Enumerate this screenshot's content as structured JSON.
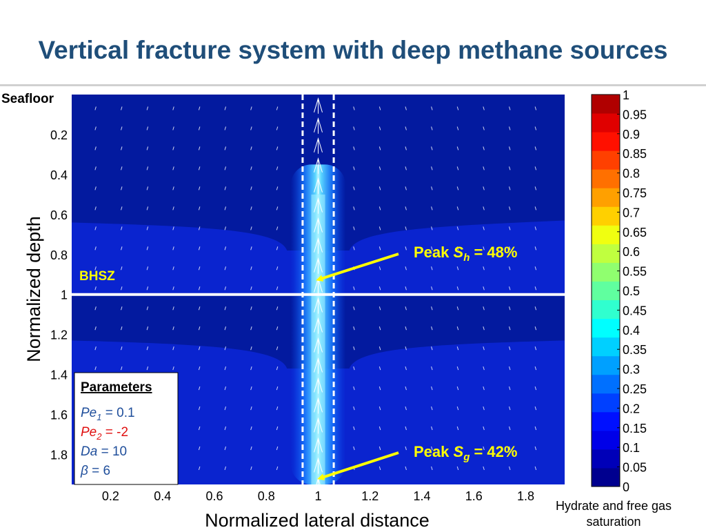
{
  "page": {
    "title": "Vertical fracture system with deep methane sources",
    "seafloor_label": "Seafloor",
    "bhsz_label": "BHSZ"
  },
  "colors": {
    "title": "#1f4e79",
    "background_field": "#0a24cf",
    "bhsz_line": "#ffffff",
    "annotation_text": "#ffff00"
  },
  "annotations": {
    "peak_sh": {
      "prefix": "Peak ",
      "symbol": "S",
      "sub": "h",
      "suffix": " = 48%",
      "target": [
        1.0,
        0.95
      ]
    },
    "peak_sg": {
      "prefix": "Peak ",
      "symbol": "S",
      "sub": "g",
      "suffix": " = 42%",
      "target": [
        1.0,
        1.95
      ]
    }
  },
  "parameters": {
    "heading": "Parameters",
    "rows": [
      {
        "symbol": "Pe",
        "sub": "1",
        "rest": " = 0.1",
        "color": "#1f4e9b"
      },
      {
        "symbol": "Pe",
        "sub": "2",
        "rest": " = -2",
        "color": "#e01010"
      },
      {
        "symbol": "Da",
        "sub": "",
        "rest": " = 10",
        "color": "#1f4e9b"
      },
      {
        "symbol": "β",
        "sub": "",
        "rest": " = 6",
        "color": "#1f4e9b"
      }
    ]
  },
  "chart_data": {
    "type": "heatmap",
    "title": "",
    "xlabel": "Normalized lateral distance",
    "ylabel": "Normalized depth",
    "xlim": [
      0.05,
      1.95
    ],
    "ylim": [
      0,
      1.95
    ],
    "y_inverted": true,
    "x_ticks": [
      0.2,
      0.4,
      0.6,
      0.8,
      1,
      1.2,
      1.4,
      1.6,
      1.8
    ],
    "x_tick_labels": [
      "0.2",
      "0.4",
      "0.6",
      "0.8",
      "1",
      "1.2",
      "1.4",
      "1.6",
      "1.8"
    ],
    "y_ticks": [
      0.2,
      0.4,
      0.6,
      0.8,
      1,
      1.2,
      1.4,
      1.6,
      1.8
    ],
    "y_tick_labels": [
      "0.2",
      "0.4",
      "0.6",
      "0.8",
      "1",
      "1.2",
      "1.4",
      "1.6",
      "1.8"
    ],
    "bhsz_depth": 1.0,
    "fracture_bounds": [
      0.94,
      1.06
    ],
    "peak_hydrate_saturation": 0.48,
    "peak_gas_saturation": 0.42,
    "colorbar": {
      "label": "Hydrate and free gas saturation",
      "label_lines": [
        "Hydrate and free gas",
        "saturation"
      ],
      "min": 0,
      "max": 1,
      "tick_labels": [
        "1",
        "0.95",
        "0.9",
        "0.85",
        "0.8",
        "0.75",
        "0.7",
        "0.65",
        "0.6",
        "0.55",
        "0.5",
        "0.45",
        "0.4",
        "0.35",
        "0.3",
        "0.25",
        "0.2",
        "0.15",
        "0.1",
        "0.05",
        "0"
      ],
      "colors": [
        "#00008f",
        "#0000b8",
        "#0000e8",
        "#0010ff",
        "#0040ff",
        "#0070ff",
        "#00a0ff",
        "#00d0ff",
        "#00ffff",
        "#30ffcf",
        "#60ff9f",
        "#90ff6f",
        "#c0ff3f",
        "#f0ff10",
        "#ffd000",
        "#ffa000",
        "#ff7000",
        "#ff4000",
        "#ff1000",
        "#e00000",
        "#b00000"
      ]
    }
  }
}
